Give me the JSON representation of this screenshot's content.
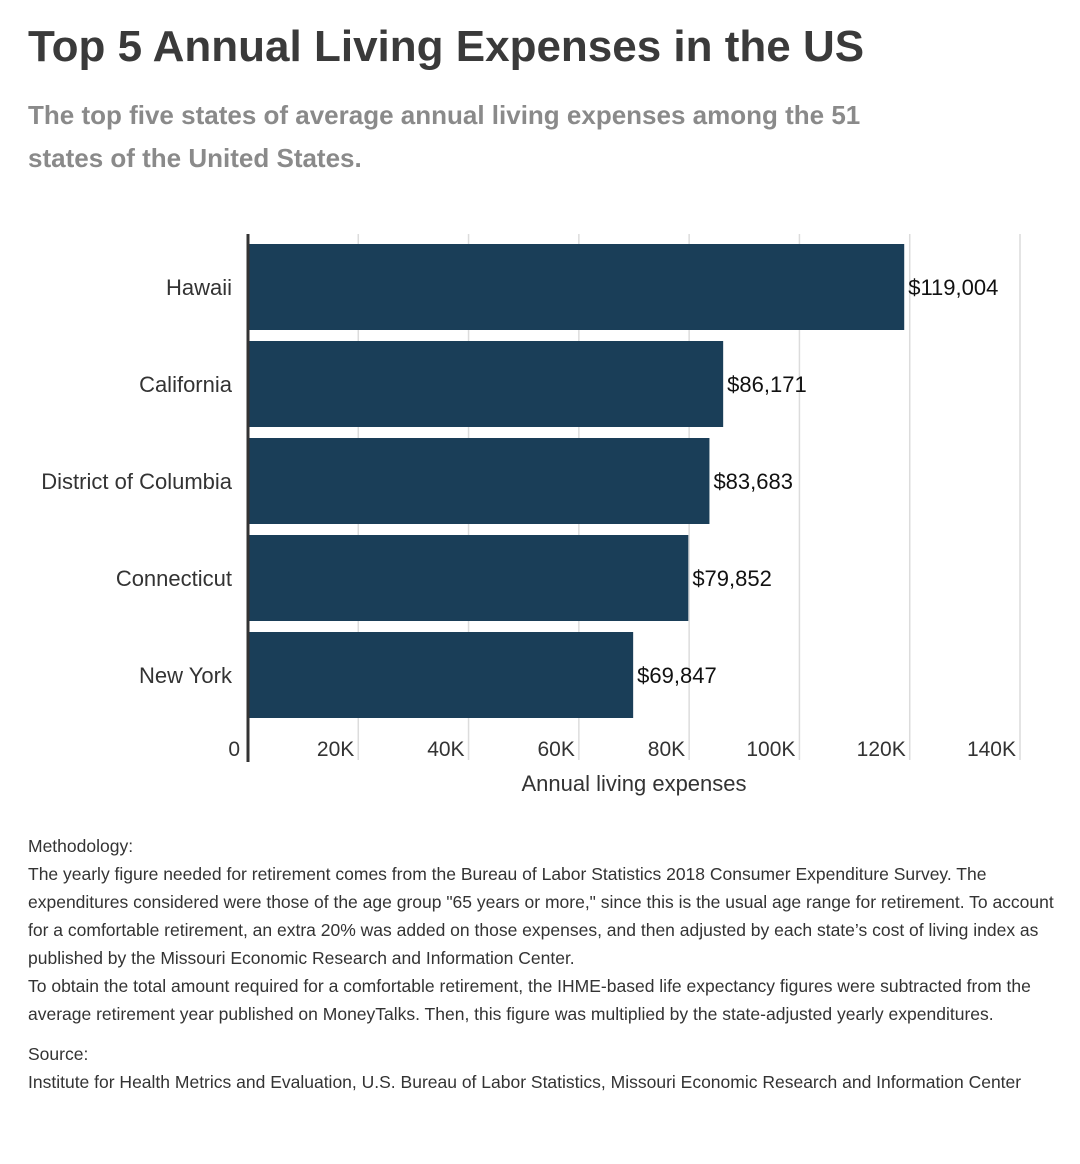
{
  "title": "Top 5 Annual Living Expenses in the US",
  "subtitle": "The top five states of average annual living expenses among the 51 states of the United States.",
  "colors": {
    "bar": "#1a3e58",
    "grid": "#dcdcdc",
    "axis": "#333333"
  },
  "chart_data": {
    "type": "bar",
    "orientation": "horizontal",
    "categories": [
      "Hawaii",
      "California",
      "District of Columbia",
      "Connecticut",
      "New York"
    ],
    "values": [
      119004,
      86171,
      83683,
      79852,
      69847
    ],
    "value_labels": [
      "$119,004",
      "$86,171",
      "$83,683",
      "$79,852",
      "$69,847"
    ],
    "xlabel": "Annual living expenses",
    "xlim": [
      0,
      140000
    ],
    "xticks": [
      0,
      20000,
      40000,
      60000,
      80000,
      100000,
      120000,
      140000
    ],
    "xtick_labels": [
      "0",
      "20K",
      "40K",
      "60K",
      "80K",
      "100K",
      "120K",
      "140K"
    ],
    "grid": true,
    "legend": false
  },
  "notes": {
    "methodology_label": "Methodology:",
    "methodology_p1": "The yearly figure needed for retirement comes from the Bureau of Labor Statistics 2018 Consumer Expenditure Survey. The expenditures considered were those of the age group \"65 years or more,\" since this is the usual age range for retirement. To account for a comfortable retirement, an extra 20% was added on those expenses, and then adjusted by each state’s cost of living index as published by the Missouri Economic Research and Information Center.",
    "methodology_p2": "To obtain the total amount required for a comfortable retirement, the IHME-based life expectancy figures were subtracted from the average retirement year published on MoneyTalks. Then, this figure was multiplied by the state-adjusted yearly expenditures.",
    "source_label": "Source:",
    "source_text": "Institute for Health Metrics and Evaluation, U.S. Bureau of Labor Statistics, Missouri Economic Research and Information Center"
  }
}
